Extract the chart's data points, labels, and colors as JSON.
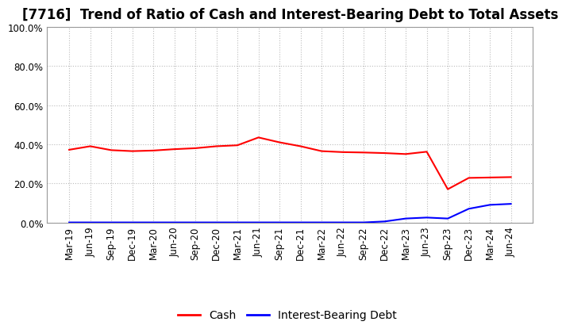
{
  "title": "[7716]  Trend of Ratio of Cash and Interest-Bearing Debt to Total Assets",
  "x_labels": [
    "Mar-19",
    "Jun-19",
    "Sep-19",
    "Dec-19",
    "Mar-20",
    "Jun-20",
    "Sep-20",
    "Dec-20",
    "Mar-21",
    "Jun-21",
    "Sep-21",
    "Dec-21",
    "Mar-22",
    "Jun-22",
    "Sep-22",
    "Dec-22",
    "Mar-23",
    "Jun-23",
    "Sep-23",
    "Dec-23",
    "Mar-24",
    "Jun-24"
  ],
  "cash": [
    0.372,
    0.39,
    0.37,
    0.365,
    0.368,
    0.375,
    0.38,
    0.39,
    0.395,
    0.435,
    0.41,
    0.39,
    0.365,
    0.36,
    0.358,
    0.355,
    0.35,
    0.362,
    0.17,
    0.228,
    0.23,
    0.232
  ],
  "interest_bearing_debt": [
    0.0,
    0.0,
    0.0,
    0.0,
    0.0,
    0.0,
    0.0,
    0.0,
    0.0,
    0.0,
    0.0,
    0.0,
    0.0,
    0.0,
    0.0,
    0.005,
    0.02,
    0.025,
    0.02,
    0.07,
    0.09,
    0.095
  ],
  "cash_color": "#FF0000",
  "debt_color": "#0000FF",
  "background_color": "#FFFFFF",
  "plot_bg_color": "#FFFFFF",
  "grid_color": "#BBBBBB",
  "ylim_min": 0.0,
  "ylim_max": 1.0,
  "yticks": [
    0.0,
    0.2,
    0.4,
    0.6,
    0.8,
    1.0
  ],
  "legend_cash": "Cash",
  "legend_debt": "Interest-Bearing Debt",
  "title_fontsize": 12,
  "tick_fontsize": 8.5,
  "legend_fontsize": 10
}
